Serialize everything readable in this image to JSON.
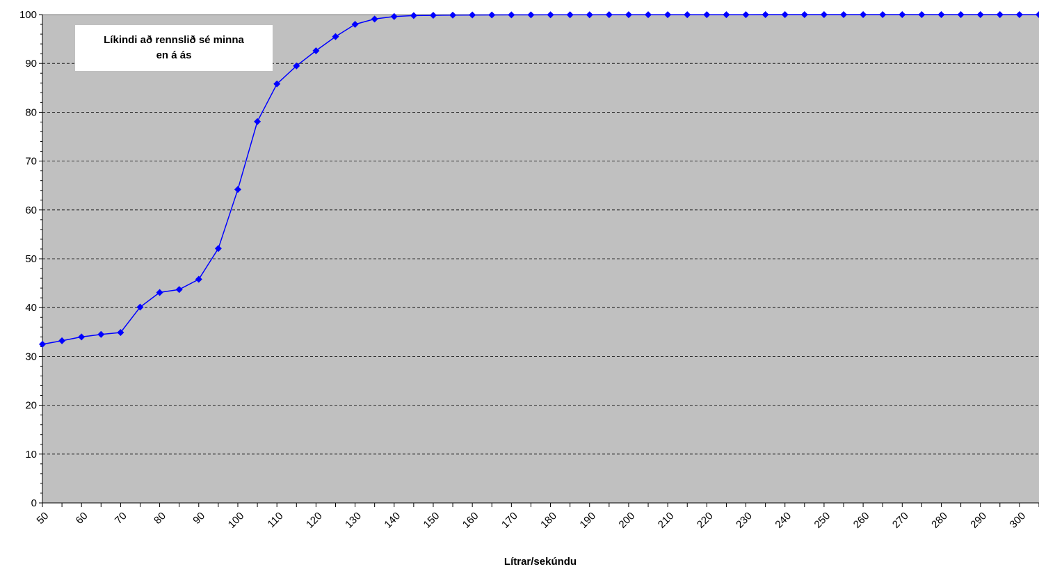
{
  "chart_data": {
    "type": "line",
    "title": "",
    "xlabel": "Lítrar/sekúndu",
    "ylabel": "",
    "annotation": [
      "Líkindi að rennslið sé minna",
      "en á ás"
    ],
    "xlim": [
      50,
      305
    ],
    "ylim": [
      0,
      100
    ],
    "yticks": [
      0,
      10,
      20,
      30,
      40,
      50,
      60,
      70,
      80,
      90,
      100
    ],
    "xtick_labels": [
      "50",
      "60",
      "70",
      "80",
      "90",
      "100",
      "110",
      "120",
      "130",
      "140",
      "150",
      "160",
      "170",
      "180",
      "190",
      "200",
      "210",
      "220",
      "230",
      "240",
      "250",
      "260",
      "270",
      "280",
      "290",
      "300"
    ],
    "grid": "horizontal dashed",
    "series": [
      {
        "color": "#0000FF",
        "marker": "diamond",
        "x": [
          50,
          55,
          60,
          65,
          70,
          75,
          80,
          85,
          90,
          95,
          100,
          105,
          110,
          115,
          120,
          125,
          130,
          135,
          140,
          145,
          150,
          155,
          160,
          165,
          170,
          175,
          180,
          185,
          190,
          195,
          200,
          205,
          210,
          215,
          220,
          225,
          230,
          235,
          240,
          245,
          250,
          255,
          260,
          265,
          270,
          275,
          280,
          285,
          290,
          295,
          300,
          305
        ],
        "y": [
          32.5,
          33.2,
          34.0,
          34.5,
          34.9,
          40.1,
          43.1,
          43.7,
          45.8,
          52.1,
          64.2,
          78.1,
          85.8,
          89.5,
          92.6,
          95.5,
          98.0,
          99.1,
          99.6,
          99.8,
          99.85,
          99.9,
          99.92,
          99.93,
          99.94,
          99.95,
          99.96,
          99.97,
          99.97,
          99.98,
          99.98,
          99.98,
          99.99,
          99.99,
          99.99,
          99.99,
          99.99,
          100,
          100,
          100,
          100,
          100,
          100,
          100,
          100,
          100,
          100,
          100,
          100,
          100,
          100,
          100
        ]
      }
    ]
  }
}
